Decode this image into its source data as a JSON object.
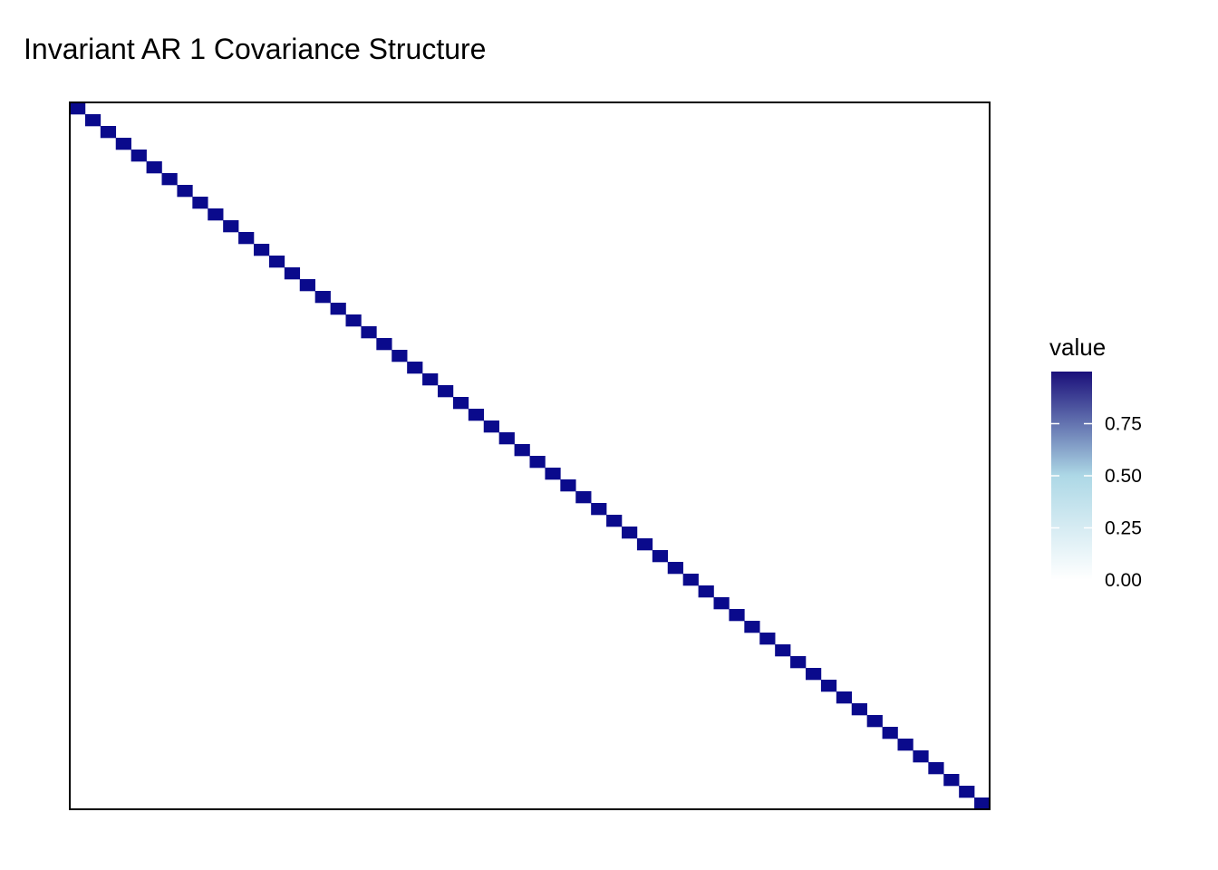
{
  "chart_data": {
    "type": "heatmap",
    "title": "Invariant AR 1 Covariance Structure",
    "matrix_size": 60,
    "off_diagonal_value": 0,
    "diagonal_value": 1,
    "xlabel": "",
    "ylabel": "",
    "color_scale": {
      "low": "#ffffff",
      "mid": "#add8e6",
      "high": "#1a0f7a",
      "diagonal_fill": "#0a0a8c"
    },
    "legend": {
      "title": "value",
      "position": "right",
      "ticks": [
        {
          "value": 0.75,
          "label": "0.75"
        },
        {
          "value": 0.5,
          "label": "0.50"
        },
        {
          "value": 0.25,
          "label": "0.25"
        },
        {
          "value": 0.0,
          "label": "0.00"
        }
      ],
      "range": [
        0,
        1
      ]
    },
    "grid": false
  }
}
